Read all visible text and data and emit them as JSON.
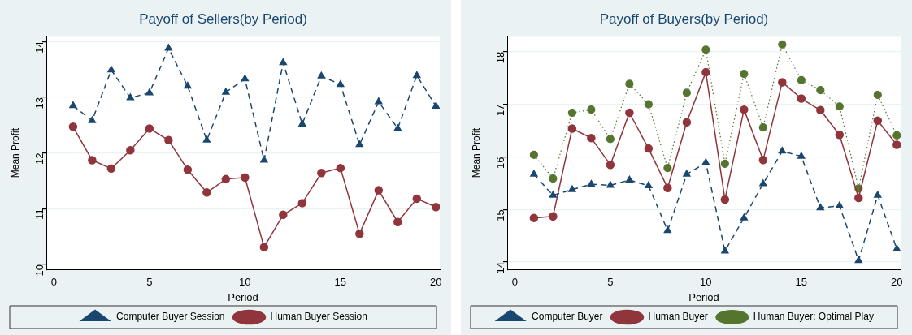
{
  "chart_data": [
    {
      "type": "line",
      "title": "Payoff of Sellers(by Period)",
      "xlabel": "Period",
      "ylabel": "Mean Profit",
      "x": [
        1,
        2,
        3,
        4,
        5,
        6,
        7,
        8,
        9,
        10,
        11,
        12,
        13,
        14,
        15,
        16,
        17,
        18,
        19,
        20
      ],
      "xlim": [
        -0.4,
        20.2
      ],
      "xticks": [
        0,
        5,
        10,
        15,
        20
      ],
      "ylim": [
        9.9,
        14.1
      ],
      "yticks": [
        10,
        11,
        12,
        13,
        14
      ],
      "grid": "y",
      "legend": "bottom",
      "series": [
        {
          "name": "Computer Buyer Session",
          "color": "#1a476f",
          "marker": "triangle",
          "line_style": "dashed",
          "values": [
            12.85,
            12.58,
            13.49,
            12.99,
            13.08,
            13.88,
            13.2,
            12.23,
            13.09,
            13.33,
            11.87,
            13.62,
            12.52,
            13.38,
            13.23,
            12.15,
            12.92,
            12.44,
            13.39,
            12.84
          ]
        },
        {
          "name": "Human Buyer Session",
          "color": "#90353b",
          "marker": "circle",
          "line_style": "solid",
          "values": [
            12.47,
            11.87,
            11.72,
            12.05,
            12.44,
            12.23,
            11.7,
            11.29,
            11.53,
            11.56,
            10.31,
            10.89,
            11.1,
            11.64,
            11.73,
            10.55,
            11.33,
            10.76,
            11.18,
            11.03
          ]
        }
      ]
    },
    {
      "type": "line",
      "title": "Payoff of Buyers(by Period)",
      "xlabel": "Period",
      "ylabel": "Mean Profit",
      "x": [
        1,
        2,
        3,
        4,
        5,
        6,
        7,
        8,
        9,
        10,
        11,
        12,
        13,
        14,
        15,
        16,
        17,
        18,
        19,
        20
      ],
      "xlim": [
        -0.4,
        20.2
      ],
      "xticks": [
        0,
        5,
        10,
        15,
        20
      ],
      "ylim": [
        13.85,
        18.3
      ],
      "yticks": [
        14,
        15,
        16,
        17,
        18
      ],
      "grid": "y",
      "legend": "bottom",
      "series": [
        {
          "name": "Computer Buyer",
          "color": "#1a476f",
          "marker": "triangle",
          "line_style": "dashed",
          "values": [
            15.67,
            15.27,
            15.38,
            15.48,
            15.46,
            15.56,
            15.45,
            14.6,
            15.67,
            15.89,
            14.21,
            14.84,
            15.49,
            16.11,
            16.01,
            15.03,
            15.07,
            14.03,
            15.27,
            14.25
          ]
        },
        {
          "name": "Human Buyer",
          "color": "#90353b",
          "marker": "circle",
          "line_style": "solid",
          "values": [
            14.84,
            14.87,
            16.54,
            16.36,
            15.85,
            16.84,
            16.16,
            15.41,
            16.66,
            17.61,
            15.19,
            16.9,
            15.94,
            17.42,
            17.11,
            16.89,
            16.42,
            15.22,
            16.69,
            16.23
          ]
        },
        {
          "name": "Human Buyer: Optimal Play",
          "color": "#55752f",
          "marker": "circle",
          "line_style": "dotted",
          "values": [
            16.04,
            15.59,
            16.84,
            16.9,
            16.34,
            17.39,
            17.0,
            15.79,
            17.22,
            18.04,
            15.87,
            17.58,
            16.56,
            18.14,
            17.46,
            17.27,
            16.96,
            15.4,
            17.18,
            16.41
          ]
        }
      ]
    }
  ]
}
